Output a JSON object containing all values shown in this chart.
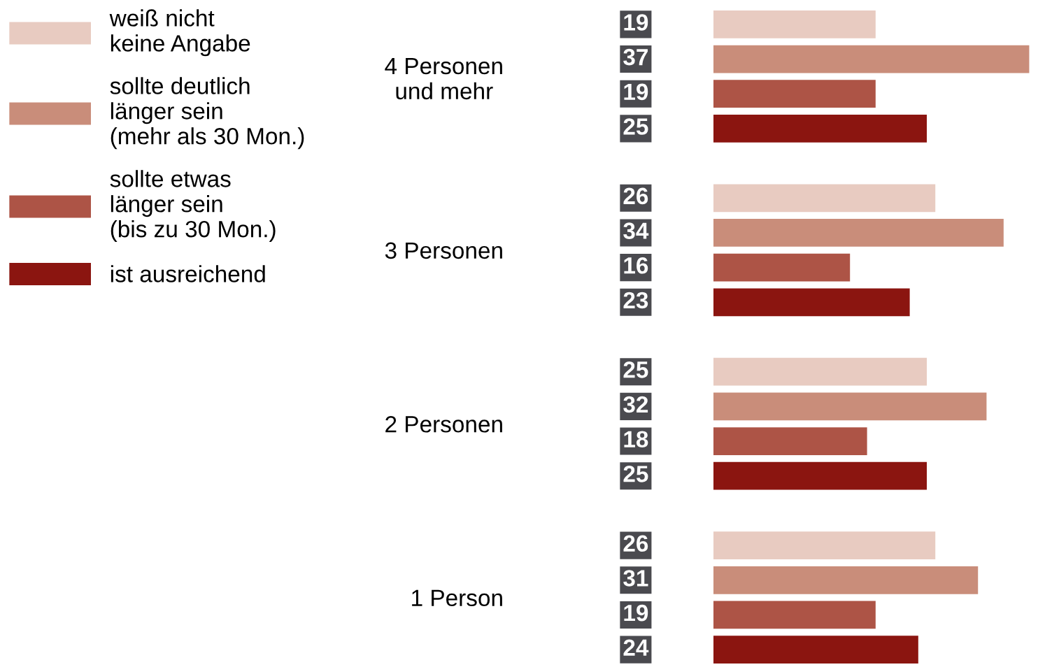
{
  "chart_data": {
    "type": "bar",
    "orientation": "horizontal",
    "categories": [
      "4 Personen\nund mehr",
      "3 Personen",
      "2 Personen",
      "1 Person"
    ],
    "series": [
      {
        "name": "weiß nicht\nkeine Angabe",
        "color": "#e8cbc1",
        "values": [
          19,
          26,
          25,
          26
        ]
      },
      {
        "name": "sollte deutlich\nlänger sein\n(mehr als 30 Mon.)",
        "color": "#c98d7a",
        "values": [
          37,
          34,
          32,
          31
        ]
      },
      {
        "name": "sollte etwas\nlänger sein\n(bis zu 30 Mon.)",
        "color": "#ad5446",
        "values": [
          19,
          16,
          18,
          19
        ]
      },
      {
        "name": "ist ausreichend",
        "color": "#8b1510",
        "values": [
          25,
          23,
          25,
          24
        ]
      }
    ],
    "data_labels": true,
    "legend": "top left",
    "grid": false
  }
}
